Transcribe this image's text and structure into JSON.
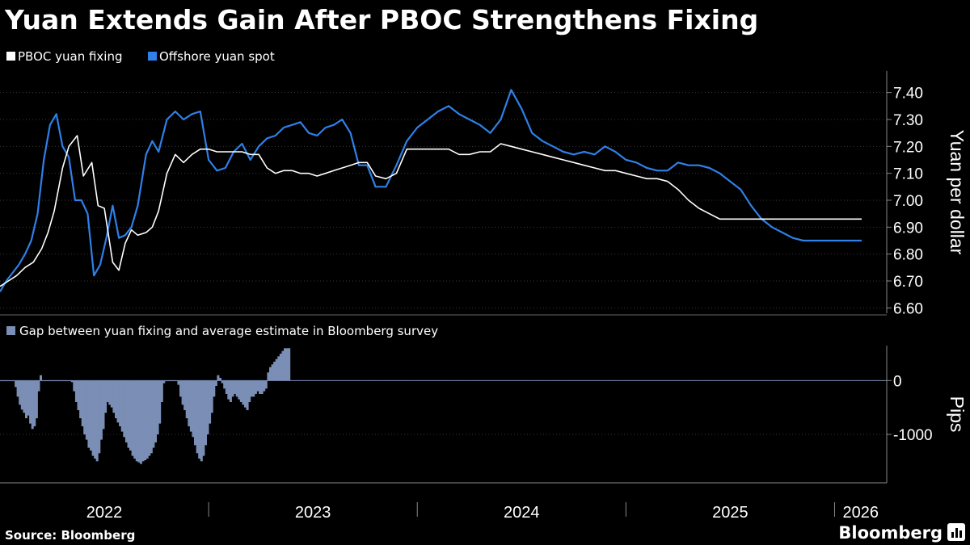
{
  "chart_data": [
    {
      "type": "line",
      "title": "Yuan Extends Gain After PBOC Strengthens Fixing",
      "ylabel": "Yuan per dollar",
      "ylim": [
        6.58,
        7.48
      ],
      "yticks": [
        "7.40",
        "7.30",
        "7.20",
        "7.10",
        "7.00",
        "6.90",
        "6.80",
        "6.70",
        "6.60"
      ],
      "xlim": [
        2022.0,
        2026.25
      ],
      "series": [
        {
          "name": "PBOC yuan fixing",
          "color": "#ffffff",
          "x": [
            2022.0,
            2022.04,
            2022.08,
            2022.12,
            2022.16,
            2022.2,
            2022.23,
            2022.26,
            2022.3,
            2022.33,
            2022.37,
            2022.4,
            2022.44,
            2022.47,
            2022.5,
            2022.54,
            2022.57,
            2022.6,
            2022.63,
            2022.66,
            2022.7,
            2022.73,
            2022.76,
            2022.8,
            2022.84,
            2022.88,
            2022.92,
            2022.96,
            2023.0,
            2023.04,
            2023.08,
            2023.12,
            2023.16,
            2023.2,
            2023.24,
            2023.28,
            2023.32,
            2023.36,
            2023.4,
            2023.44,
            2023.48,
            2023.52,
            2023.56,
            2023.6,
            2023.64,
            2023.68,
            2023.72,
            2023.76,
            2023.8,
            2023.85,
            2023.9,
            2023.95,
            2024.0,
            2024.05,
            2024.1,
            2024.15,
            2024.2,
            2024.25,
            2024.3,
            2024.35,
            2024.4,
            2024.45,
            2024.5,
            2024.55,
            2024.6,
            2024.65,
            2024.7,
            2024.75,
            2024.8,
            2024.85,
            2024.9,
            2024.95,
            2025.0,
            2025.05,
            2025.1,
            2025.15,
            2025.2,
            2025.25,
            2025.3,
            2025.35,
            2025.4,
            2025.45,
            2025.5,
            2025.55,
            2025.6,
            2025.65,
            2025.7,
            2025.75,
            2025.8,
            2025.85,
            2025.9,
            2025.95,
            2026.0,
            2026.05,
            2026.1,
            2026.13
          ],
          "values": [
            6.68,
            6.7,
            6.72,
            6.75,
            6.77,
            6.82,
            6.88,
            6.96,
            7.12,
            7.2,
            7.24,
            7.09,
            7.14,
            6.98,
            6.97,
            6.77,
            6.74,
            6.84,
            6.89,
            6.87,
            6.88,
            6.9,
            6.96,
            7.1,
            7.17,
            7.14,
            7.17,
            7.19,
            7.19,
            7.18,
            7.18,
            7.18,
            7.18,
            7.17,
            7.17,
            7.12,
            7.1,
            7.11,
            7.11,
            7.1,
            7.1,
            7.09,
            7.1,
            7.11,
            7.12,
            7.13,
            7.14,
            7.14,
            7.09,
            7.08,
            7.1,
            7.19,
            7.19,
            7.19,
            7.19,
            7.19,
            7.17,
            7.17,
            7.18,
            7.18,
            7.21,
            7.2,
            7.19,
            7.18,
            7.17,
            7.16,
            7.15,
            7.14,
            7.13,
            7.12,
            7.11,
            7.11,
            7.1,
            7.09,
            7.08,
            7.08,
            7.07,
            7.04,
            7.0,
            6.97,
            6.95,
            6.93,
            6.93,
            6.93,
            6.93,
            6.93,
            6.93,
            6.93,
            6.93,
            6.93,
            6.93,
            6.93,
            6.93,
            6.93,
            6.93,
            6.93
          ]
        },
        {
          "name": "Offshore yuan spot",
          "color": "#2f80e8",
          "x": [
            2022.0,
            2022.03,
            2022.06,
            2022.09,
            2022.12,
            2022.15,
            2022.18,
            2022.21,
            2022.24,
            2022.27,
            2022.3,
            2022.33,
            2022.36,
            2022.39,
            2022.42,
            2022.45,
            2022.48,
            2022.51,
            2022.54,
            2022.57,
            2022.6,
            2022.63,
            2022.66,
            2022.7,
            2022.73,
            2022.76,
            2022.8,
            2022.84,
            2022.88,
            2022.92,
            2022.96,
            2023.0,
            2023.04,
            2023.08,
            2023.12,
            2023.16,
            2023.2,
            2023.24,
            2023.28,
            2023.32,
            2023.36,
            2023.4,
            2023.44,
            2023.48,
            2023.52,
            2023.56,
            2023.6,
            2023.64,
            2023.68,
            2023.72,
            2023.76,
            2023.8,
            2023.85,
            2023.9,
            2023.95,
            2024.0,
            2024.05,
            2024.1,
            2024.15,
            2024.2,
            2024.25,
            2024.3,
            2024.35,
            2024.4,
            2024.45,
            2024.5,
            2024.55,
            2024.6,
            2024.65,
            2024.7,
            2024.75,
            2024.8,
            2024.85,
            2024.9,
            2024.95,
            2025.0,
            2025.05,
            2025.1,
            2025.15,
            2025.2,
            2025.25,
            2025.3,
            2025.35,
            2025.4,
            2025.45,
            2025.5,
            2025.55,
            2025.6,
            2025.65,
            2025.7,
            2025.75,
            2025.8,
            2025.85,
            2025.9,
            2025.95,
            2026.0,
            2026.05,
            2026.1,
            2026.13
          ],
          "values": [
            6.66,
            6.7,
            6.73,
            6.76,
            6.8,
            6.85,
            6.95,
            7.15,
            7.28,
            7.32,
            7.2,
            7.16,
            7.0,
            7.0,
            6.95,
            6.72,
            6.76,
            6.86,
            6.98,
            6.86,
            6.87,
            6.9,
            6.98,
            7.17,
            7.22,
            7.18,
            7.3,
            7.33,
            7.3,
            7.32,
            7.33,
            7.15,
            7.11,
            7.12,
            7.18,
            7.21,
            7.15,
            7.2,
            7.23,
            7.24,
            7.27,
            7.28,
            7.29,
            7.25,
            7.24,
            7.27,
            7.28,
            7.3,
            7.25,
            7.13,
            7.13,
            7.05,
            7.05,
            7.13,
            7.22,
            7.27,
            7.3,
            7.33,
            7.35,
            7.32,
            7.3,
            7.28,
            7.25,
            7.3,
            7.41,
            7.34,
            7.25,
            7.22,
            7.2,
            7.18,
            7.17,
            7.18,
            7.17,
            7.2,
            7.18,
            7.15,
            7.14,
            7.12,
            7.11,
            7.11,
            7.14,
            7.13,
            7.13,
            7.12,
            7.1,
            7.07,
            7.04,
            6.98,
            6.93,
            6.9,
            6.88,
            6.86,
            6.85,
            6.85,
            6.85,
            6.85,
            6.85,
            6.85,
            6.85
          ]
        }
      ]
    },
    {
      "type": "bar",
      "title": "Gap between yuan fixing and average estimate in Bloomberg survey",
      "ylabel": "Pips",
      "ylim": [
        -1900,
        650
      ],
      "yticks": [
        "0",
        "-1000"
      ],
      "xlim": [
        2022.0,
        2026.25
      ],
      "color": "#7b8eb5",
      "x_start": 2022.0,
      "x_step": 0.01,
      "values": [
        0,
        0,
        0,
        0,
        0,
        0,
        -10,
        -120,
        -300,
        -450,
        -540,
        -600,
        -700,
        -650,
        -800,
        -900,
        -850,
        -700,
        -200,
        100,
        0,
        0,
        0,
        0,
        0,
        0,
        0,
        0,
        0,
        0,
        0,
        0,
        0,
        0,
        -30,
        -200,
        -400,
        -550,
        -700,
        -850,
        -1000,
        -1100,
        -1250,
        -1300,
        -1400,
        -1450,
        -1500,
        -1350,
        -1100,
        -900,
        -600,
        -400,
        -450,
        -500,
        -600,
        -700,
        -780,
        -850,
        -950,
        -1050,
        -1150,
        -1250,
        -1300,
        -1400,
        -1450,
        -1500,
        -1520,
        -1550,
        -1500,
        -1480,
        -1450,
        -1400,
        -1350,
        -1250,
        -1150,
        -1000,
        -800,
        -400,
        -50,
        0,
        0,
        0,
        0,
        0,
        0,
        -80,
        -300,
        -450,
        -550,
        -700,
        -850,
        -950,
        -1050,
        -1200,
        -1350,
        -1450,
        -1500,
        -1400,
        -1200,
        -1000,
        -800,
        -600,
        -300,
        -100,
        100,
        50,
        -50,
        -150,
        -250,
        -350,
        -400,
        -300,
        -250,
        -300,
        -350,
        -400,
        -450,
        -500,
        -550,
        -400,
        -300,
        -300,
        -250,
        -200,
        -250,
        -250,
        -200,
        -150,
        150,
        250,
        300,
        350,
        400,
        450,
        500,
        550,
        600,
        600,
        600
      ]
    }
  ],
  "legends": {
    "fixing": "PBOC yuan fixing",
    "spot": "Offshore yuan spot",
    "gap": "Gap between yuan fixing and average estimate in Bloomberg survey"
  },
  "x_axis": {
    "years": [
      "2022",
      "2023",
      "2024",
      "2025",
      "2026"
    ]
  },
  "footer": {
    "source": "Source: Bloomberg",
    "brand": "Bloomberg"
  }
}
